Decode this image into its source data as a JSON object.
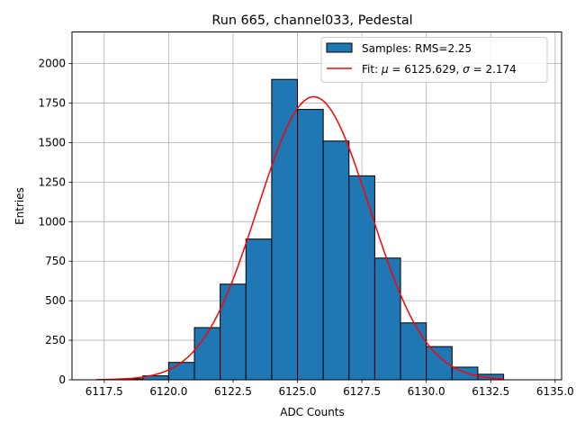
{
  "chart_data": {
    "type": "bar",
    "title": "Run 665, channel033, Pedestal",
    "xlabel": "ADC Counts",
    "ylabel": "Entries",
    "xlim": [
      6116.25,
      6135.25
    ],
    "ylim": [
      0,
      2200
    ],
    "grid": true,
    "legend_position": "top-right",
    "xticks": [
      {
        "value": 6117.5,
        "label": "6117.5"
      },
      {
        "value": 6120.0,
        "label": "6120.0"
      },
      {
        "value": 6122.5,
        "label": "6122.5"
      },
      {
        "value": 6125.0,
        "label": "6125.0"
      },
      {
        "value": 6127.5,
        "label": "6127.5"
      },
      {
        "value": 6130.0,
        "label": "6130.0"
      },
      {
        "value": 6132.5,
        "label": "6132.5"
      },
      {
        "value": 6135.0,
        "label": "6135.0"
      }
    ],
    "yticks": [
      {
        "value": 0,
        "label": "0"
      },
      {
        "value": 250,
        "label": "250"
      },
      {
        "value": 500,
        "label": "500"
      },
      {
        "value": 750,
        "label": "750"
      },
      {
        "value": 1000,
        "label": "1000"
      },
      {
        "value": 1250,
        "label": "1250"
      },
      {
        "value": 1500,
        "label": "1500"
      },
      {
        "value": 1750,
        "label": "1750"
      },
      {
        "value": 2000,
        "label": "2000"
      }
    ],
    "histogram": {
      "name": "Samples: RMS=2.25",
      "color": "#1f77b4",
      "edge_color": "#000000",
      "bin_edges": [
        6118,
        6119,
        6120,
        6121,
        6122,
        6123,
        6124,
        6125,
        6126,
        6127,
        6128,
        6129,
        6130,
        6131,
        6132,
        6133
      ],
      "counts": [
        6,
        25,
        110,
        330,
        605,
        890,
        1900,
        1710,
        1510,
        1290,
        770,
        360,
        210,
        80,
        35
      ]
    },
    "fit": {
      "name": "Fit: μ = 6125.629, σ = 2.174",
      "legend_parts": [
        "Fit: ",
        "μ",
        " = 6125.629, ",
        "σ",
        " = 2.174"
      ],
      "color": "#ff0000",
      "mu": 6125.629,
      "sigma": 2.174,
      "amplitude": 1790,
      "x_range": [
        6117.2,
        6133.0
      ]
    }
  }
}
